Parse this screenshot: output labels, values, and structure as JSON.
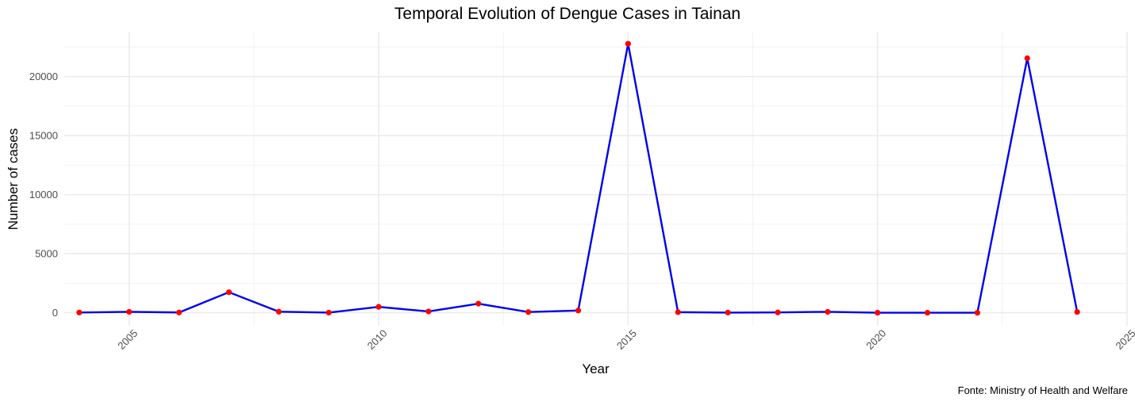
{
  "chart_data": {
    "type": "line",
    "title": "Temporal Evolution of Dengue Cases in Tainan",
    "xlabel": "Year",
    "ylabel": "Number of cases",
    "caption": "Fonte: Ministry of Health and Welfare",
    "xlim": [
      2003.7,
      2025
    ],
    "ylim": [
      -1100,
      23800
    ],
    "x_ticks": [
      2005,
      2010,
      2015,
      2020,
      2025
    ],
    "y_ticks": [
      0,
      5000,
      10000,
      15000,
      20000
    ],
    "grid": true,
    "legend": "none",
    "series": [
      {
        "x": [
          2004,
          2005,
          2006,
          2007,
          2008,
          2009,
          2010,
          2011,
          2012,
          2013,
          2014,
          2015,
          2016,
          2017,
          2018,
          2019,
          2020,
          2021,
          2022,
          2023,
          2024
        ],
        "values": [
          20,
          80,
          25,
          1740,
          90,
          10,
          500,
          110,
          770,
          60,
          190,
          22780,
          50,
          15,
          30,
          80,
          5,
          2,
          0,
          21550,
          70
        ],
        "line_color": "#0000ee",
        "point_color": "#ff0000"
      }
    ]
  }
}
